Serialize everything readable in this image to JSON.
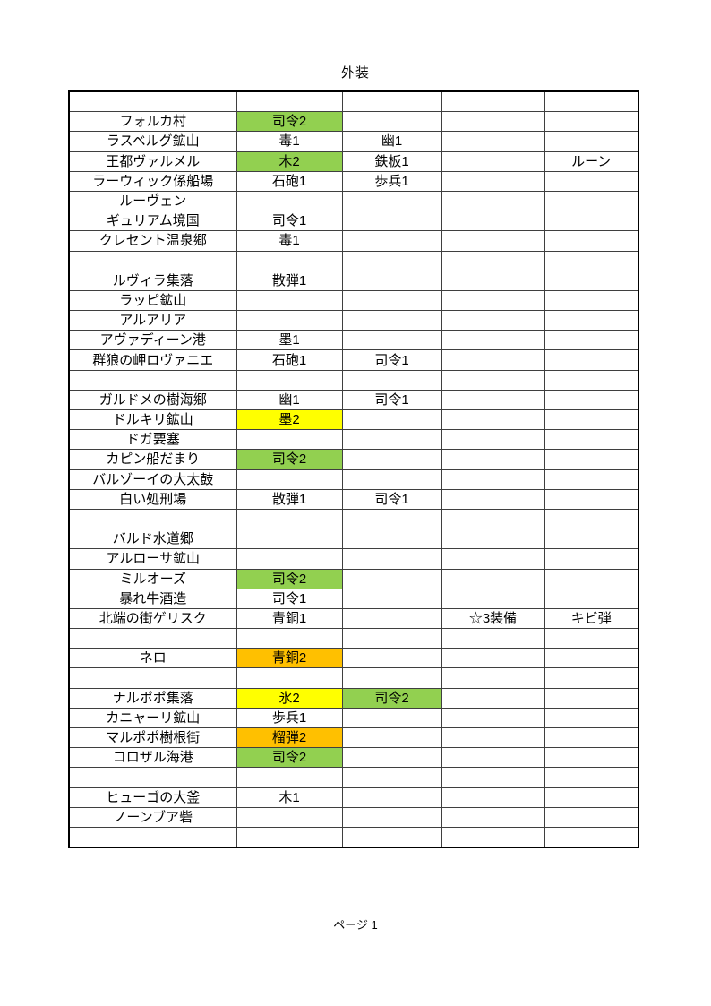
{
  "page": {
    "title": "外装",
    "footer": "ページ 1"
  },
  "colors": {
    "green": "#92D050",
    "yellow": "#FFFF00",
    "orange": "#FFC000"
  },
  "table": {
    "columns": 5,
    "rows": [
      {
        "c": [
          "",
          "",
          "",
          "",
          ""
        ]
      },
      {
        "c": [
          "フォルカ村",
          "司令2",
          "",
          "",
          ""
        ],
        "f": {
          "1": "green"
        }
      },
      {
        "c": [
          "ラスベルグ鉱山",
          "毒1",
          "幽1",
          "",
          ""
        ]
      },
      {
        "c": [
          "王都ヴァルメル",
          "木2",
          "鉄板1",
          "",
          "ルーン"
        ],
        "f": {
          "1": "green"
        }
      },
      {
        "c": [
          "ラーウィック係船場",
          "石砲1",
          "歩兵1",
          "",
          ""
        ]
      },
      {
        "c": [
          "ルーヴェン",
          "",
          "",
          "",
          ""
        ]
      },
      {
        "c": [
          "ギュリアム境国",
          "司令1",
          "",
          "",
          ""
        ]
      },
      {
        "c": [
          "クレセント温泉郷",
          "毒1",
          "",
          "",
          ""
        ]
      },
      {
        "c": [
          "",
          "",
          "",
          "",
          ""
        ]
      },
      {
        "c": [
          "ルヴィラ集落",
          "散弾1",
          "",
          "",
          ""
        ]
      },
      {
        "c": [
          "ラッピ鉱山",
          "",
          "",
          "",
          ""
        ]
      },
      {
        "c": [
          "アルアリア",
          "",
          "",
          "",
          ""
        ]
      },
      {
        "c": [
          "アヴァディーン港",
          "墨1",
          "",
          "",
          ""
        ]
      },
      {
        "c": [
          "群狼の岬ロヴァニエ",
          "石砲1",
          "司令1",
          "",
          ""
        ]
      },
      {
        "c": [
          "",
          "",
          "",
          "",
          ""
        ]
      },
      {
        "c": [
          "ガルドメの樹海郷",
          "幽1",
          "司令1",
          "",
          ""
        ]
      },
      {
        "c": [
          "ドルキリ鉱山",
          "墨2",
          "",
          "",
          ""
        ],
        "f": {
          "1": "yellow"
        }
      },
      {
        "c": [
          "ドガ要塞",
          "",
          "",
          "",
          ""
        ]
      },
      {
        "c": [
          "カピン船だまり",
          "司令2",
          "",
          "",
          ""
        ],
        "f": {
          "1": "green"
        }
      },
      {
        "c": [
          "バルゾーイの大太鼓",
          "",
          "",
          "",
          ""
        ]
      },
      {
        "c": [
          "白い処刑場",
          "散弾1",
          "司令1",
          "",
          ""
        ]
      },
      {
        "c": [
          "",
          "",
          "",
          "",
          ""
        ]
      },
      {
        "c": [
          "バルド水道郷",
          "",
          "",
          "",
          ""
        ]
      },
      {
        "c": [
          "アルローサ鉱山",
          "",
          "",
          "",
          ""
        ]
      },
      {
        "c": [
          "ミルオーズ",
          "司令2",
          "",
          "",
          ""
        ],
        "f": {
          "1": "green"
        }
      },
      {
        "c": [
          "暴れ牛酒造",
          "司令1",
          "",
          "",
          ""
        ]
      },
      {
        "c": [
          "北端の街ゲリスク",
          "青銅1",
          "",
          "☆3装備",
          "キビ弾"
        ]
      },
      {
        "c": [
          "",
          "",
          "",
          "",
          ""
        ]
      },
      {
        "c": [
          "ネロ",
          "青銅2",
          "",
          "",
          ""
        ],
        "f": {
          "1": "orange"
        }
      },
      {
        "c": [
          "",
          "",
          "",
          "",
          ""
        ]
      },
      {
        "c": [
          "ナルポポ集落",
          "氷2",
          "司令2",
          "",
          ""
        ],
        "f": {
          "1": "yellow",
          "2": "green"
        }
      },
      {
        "c": [
          "カニャーリ鉱山",
          "歩兵1",
          "",
          "",
          ""
        ]
      },
      {
        "c": [
          "マルポポ樹根街",
          "榴弾2",
          "",
          "",
          ""
        ],
        "f": {
          "1": "orange"
        }
      },
      {
        "c": [
          "コロザル海港",
          "司令2",
          "",
          "",
          ""
        ],
        "f": {
          "1": "green"
        }
      },
      {
        "c": [
          "",
          "",
          "",
          "",
          ""
        ]
      },
      {
        "c": [
          "ヒューゴの大釜",
          "木1",
          "",
          "",
          ""
        ]
      },
      {
        "c": [
          "ノーンブア砦",
          "",
          "",
          "",
          ""
        ]
      },
      {
        "c": [
          "",
          "",
          "",
          "",
          ""
        ]
      }
    ]
  }
}
